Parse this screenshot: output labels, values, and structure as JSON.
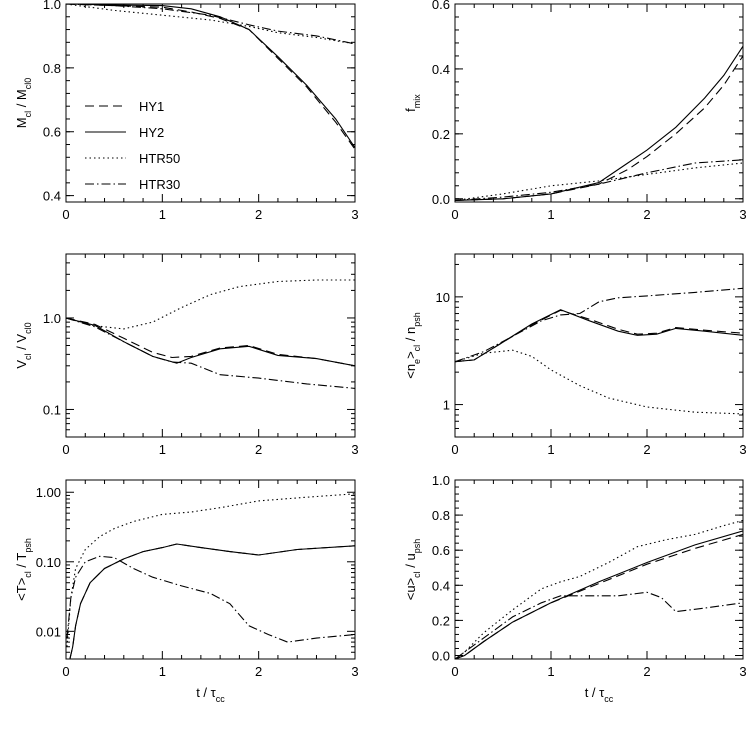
{
  "chart_data": [
    {
      "type": "line",
      "panel": "top-left",
      "ylabel": {
        "main": "M",
        "sub": "cl",
        "tail": " / M",
        "tail_sub": "cl0"
      },
      "xlabel": null,
      "xlim": [
        0,
        3
      ],
      "ylim": [
        0.38,
        1.0
      ],
      "yscale": "linear",
      "xticks": [
        "0",
        "1",
        "2",
        "3"
      ],
      "yticks": [
        {
          "v": 0.4,
          "label": "0.4"
        },
        {
          "v": 0.6,
          "label": "0.6"
        },
        {
          "v": 0.8,
          "label": "0.8"
        },
        {
          "v": 1.0,
          "label": "1.0"
        }
      ],
      "legend": {
        "placement": "left-middle",
        "entries": [
          {
            "label": "HY1",
            "style": "dashed"
          },
          {
            "label": "HY2",
            "style": "solid"
          },
          {
            "label": "HTR50",
            "style": "dotted"
          },
          {
            "label": "HTR30",
            "style": "dashdot"
          }
        ]
      },
      "series": [
        {
          "name": "HY1",
          "style": "dashed",
          "x": [
            0,
            0.5,
            1.0,
            1.3,
            1.6,
            1.9,
            2.2,
            2.5,
            2.8,
            3.0
          ],
          "y": [
            1.0,
            0.995,
            0.99,
            0.975,
            0.955,
            0.92,
            0.83,
            0.74,
            0.63,
            0.545
          ]
        },
        {
          "name": "HY2",
          "style": "solid",
          "x": [
            0,
            0.5,
            1.0,
            1.3,
            1.6,
            1.9,
            2.2,
            2.5,
            2.8,
            3.0
          ],
          "y": [
            1.0,
            0.997,
            0.995,
            0.985,
            0.96,
            0.92,
            0.835,
            0.745,
            0.64,
            0.55
          ]
        },
        {
          "name": "HTR50",
          "style": "dotted",
          "x": [
            0,
            0.5,
            1.0,
            1.5,
            1.9,
            2.2,
            2.6,
            3.0
          ],
          "y": [
            1.0,
            0.98,
            0.965,
            0.95,
            0.93,
            0.91,
            0.895,
            0.875
          ]
        },
        {
          "name": "HTR30",
          "style": "dashdot",
          "x": [
            0,
            0.5,
            1.0,
            1.5,
            1.9,
            2.2,
            2.6,
            3.0
          ],
          "y": [
            1.0,
            0.995,
            0.985,
            0.965,
            0.935,
            0.915,
            0.9,
            0.875
          ]
        }
      ]
    },
    {
      "type": "line",
      "panel": "top-right",
      "ylabel": {
        "main": "f",
        "sub": "mix",
        "tail": "",
        "tail_sub": ""
      },
      "xlabel": null,
      "xlim": [
        0,
        3
      ],
      "ylim": [
        -0.01,
        0.6
      ],
      "yscale": "linear",
      "xticks": [
        "0",
        "1",
        "2",
        "3"
      ],
      "yticks": [
        {
          "v": 0.0,
          "label": "0.0"
        },
        {
          "v": 0.2,
          "label": "0.2"
        },
        {
          "v": 0.4,
          "label": "0.4"
        },
        {
          "v": 0.6,
          "label": "0.6"
        }
      ],
      "series": [
        {
          "name": "HY1",
          "style": "dashed",
          "x": [
            0,
            0.5,
            1.0,
            1.5,
            1.8,
            2.0,
            2.3,
            2.6,
            2.8,
            3.0
          ],
          "y": [
            -0.005,
            0.0,
            0.015,
            0.045,
            0.09,
            0.13,
            0.2,
            0.28,
            0.35,
            0.44
          ]
        },
        {
          "name": "HY2",
          "style": "solid",
          "x": [
            0,
            0.5,
            1.0,
            1.5,
            1.8,
            2.0,
            2.3,
            2.6,
            2.8,
            3.0
          ],
          "y": [
            -0.005,
            0.0,
            0.015,
            0.05,
            0.11,
            0.15,
            0.22,
            0.31,
            0.38,
            0.47
          ]
        },
        {
          "name": "HTR50",
          "style": "dotted",
          "x": [
            0,
            0.5,
            1.0,
            1.5,
            2.0,
            2.5,
            3.0
          ],
          "y": [
            -0.005,
            0.015,
            0.04,
            0.055,
            0.075,
            0.095,
            0.11
          ]
        },
        {
          "name": "HTR30",
          "style": "dashdot",
          "x": [
            0,
            0.5,
            1.0,
            1.5,
            2.0,
            2.5,
            3.0
          ],
          "y": [
            -0.005,
            0.005,
            0.02,
            0.045,
            0.08,
            0.11,
            0.12
          ]
        }
      ]
    },
    {
      "type": "line",
      "panel": "middle-left",
      "ylabel": {
        "main": "V",
        "sub": "cl",
        "tail": " / V",
        "tail_sub": "cl0"
      },
      "xlabel": null,
      "xlim": [
        0,
        3
      ],
      "ylim": [
        0.05,
        5
      ],
      "yscale": "log",
      "xticks": [
        "0",
        "1",
        "2",
        "3"
      ],
      "yticks": [
        {
          "v": 0.1,
          "label": "0.1"
        },
        {
          "v": 1.0,
          "label": "1.0"
        }
      ],
      "series": [
        {
          "name": "HY1",
          "style": "dashed",
          "x": [
            0,
            0.3,
            0.6,
            0.9,
            1.1,
            1.3,
            1.6,
            1.9,
            2.2,
            2.6,
            3.0
          ],
          "y": [
            1.0,
            0.85,
            0.6,
            0.42,
            0.37,
            0.38,
            0.47,
            0.5,
            0.4,
            0.36,
            0.3
          ]
        },
        {
          "name": "HY2",
          "style": "solid",
          "x": [
            0,
            0.3,
            0.6,
            0.9,
            1.15,
            1.3,
            1.6,
            1.9,
            2.2,
            2.6,
            3.0
          ],
          "y": [
            1.0,
            0.83,
            0.55,
            0.38,
            0.32,
            0.37,
            0.46,
            0.49,
            0.39,
            0.36,
            0.3
          ]
        },
        {
          "name": "HTR50",
          "style": "dotted",
          "x": [
            0,
            0.3,
            0.6,
            0.9,
            1.2,
            1.5,
            1.8,
            2.2,
            2.6,
            3.0
          ],
          "y": [
            1.0,
            0.82,
            0.76,
            0.9,
            1.3,
            1.8,
            2.2,
            2.5,
            2.6,
            2.6
          ]
        },
        {
          "name": "HTR30",
          "style": "dashdot",
          "x": [
            0,
            0.3,
            0.6,
            0.9,
            1.1,
            1.3,
            1.6,
            2.0,
            2.5,
            3.0
          ],
          "y": [
            1.0,
            0.8,
            0.55,
            0.38,
            0.33,
            0.32,
            0.24,
            0.22,
            0.19,
            0.17
          ]
        }
      ]
    },
    {
      "type": "line",
      "panel": "middle-right",
      "ylabel": {
        "main": "<n",
        "sub": "e",
        "tail": ">",
        "tail_sub": "cl",
        "tail2": " / n",
        "tail2_sub": "psh"
      },
      "xlabel": null,
      "xlim": [
        0,
        3
      ],
      "ylim": [
        0.5,
        25
      ],
      "yscale": "log",
      "xticks": [
        "0",
        "1",
        "2",
        "3"
      ],
      "yticks": [
        {
          "v": 1,
          "label": "1"
        },
        {
          "v": 10,
          "label": "10"
        }
      ],
      "series": [
        {
          "name": "HY1",
          "style": "dashed",
          "x": [
            0,
            0.2,
            0.5,
            0.8,
            1.1,
            1.4,
            1.7,
            1.9,
            2.1,
            2.3,
            2.6,
            3.0
          ],
          "y": [
            2.5,
            2.6,
            3.8,
            5.5,
            7.5,
            6.2,
            5.0,
            4.5,
            4.6,
            5.2,
            4.9,
            4.6
          ]
        },
        {
          "name": "HY2",
          "style": "solid",
          "x": [
            0,
            0.2,
            0.5,
            0.8,
            1.1,
            1.4,
            1.7,
            1.9,
            2.1,
            2.3,
            2.6,
            3.0
          ],
          "y": [
            2.5,
            2.6,
            3.8,
            5.6,
            7.6,
            6.0,
            4.8,
            4.4,
            4.5,
            5.1,
            4.8,
            4.4
          ]
        },
        {
          "name": "HTR50",
          "style": "dotted",
          "x": [
            0,
            0.3,
            0.6,
            0.8,
            1.0,
            1.3,
            1.6,
            2.0,
            2.5,
            3.0
          ],
          "y": [
            2.5,
            3.0,
            3.2,
            2.8,
            2.1,
            1.5,
            1.15,
            0.95,
            0.85,
            0.82
          ]
        },
        {
          "name": "HTR30",
          "style": "dashdot",
          "x": [
            0,
            0.3,
            0.6,
            0.9,
            1.1,
            1.3,
            1.5,
            1.7,
            2.0,
            2.5,
            3.0
          ],
          "y": [
            2.5,
            3.1,
            4.3,
            6.0,
            6.8,
            7.0,
            9.0,
            9.8,
            10.2,
            11.0,
            12.0
          ]
        }
      ]
    },
    {
      "type": "line",
      "panel": "bottom-left",
      "ylabel": {
        "main": "<T>",
        "sub": "cl",
        "tail": " / T",
        "tail_sub": "psh"
      },
      "xlabel": {
        "main": "t / τ",
        "sub": "cc"
      },
      "xlim": [
        0,
        3
      ],
      "ylim": [
        0.004,
        1.5
      ],
      "yscale": "log",
      "xticks": [
        "0",
        "1",
        "2",
        "3"
      ],
      "yticks": [
        {
          "v": 0.01,
          "label": "0.01"
        },
        {
          "v": 0.1,
          "label": "0.10"
        },
        {
          "v": 1.0,
          "label": "1.00"
        }
      ],
      "series": [
        {
          "name": "HY1",
          "style": "dashed",
          "x": [
            0.04,
            0.07,
            0.1,
            0.15,
            0.25,
            0.4,
            0.6,
            0.8,
            1.0,
            1.15,
            1.4,
            1.7,
            2.0,
            2.4,
            3.0
          ],
          "y": [
            0.004,
            0.006,
            0.012,
            0.025,
            0.05,
            0.08,
            0.11,
            0.14,
            0.16,
            0.18,
            0.16,
            0.14,
            0.125,
            0.15,
            0.17
          ]
        },
        {
          "name": "HY2",
          "style": "solid",
          "x": [
            0.04,
            0.07,
            0.1,
            0.15,
            0.25,
            0.4,
            0.6,
            0.8,
            1.0,
            1.15,
            1.4,
            1.7,
            2.0,
            2.4,
            3.0
          ],
          "y": [
            0.004,
            0.006,
            0.012,
            0.025,
            0.05,
            0.08,
            0.11,
            0.14,
            0.16,
            0.18,
            0.16,
            0.14,
            0.125,
            0.15,
            0.17
          ]
        },
        {
          "name": "HTR50",
          "style": "dotted",
          "x": [
            0.01,
            0.05,
            0.1,
            0.2,
            0.35,
            0.5,
            0.7,
            1.0,
            1.3,
            1.6,
            2.0,
            2.5,
            3.0
          ],
          "y": [
            0.006,
            0.03,
            0.08,
            0.15,
            0.23,
            0.3,
            0.38,
            0.48,
            0.52,
            0.6,
            0.75,
            0.85,
            0.95
          ]
        },
        {
          "name": "HTR30",
          "style": "dashdot",
          "x": [
            0.01,
            0.05,
            0.1,
            0.2,
            0.35,
            0.5,
            0.7,
            0.9,
            1.2,
            1.5,
            1.7,
            1.9,
            2.1,
            2.3,
            2.6,
            3.0
          ],
          "y": [
            0.008,
            0.03,
            0.06,
            0.1,
            0.12,
            0.115,
            0.08,
            0.06,
            0.045,
            0.035,
            0.025,
            0.012,
            0.009,
            0.007,
            0.008,
            0.009
          ]
        }
      ]
    },
    {
      "type": "line",
      "panel": "bottom-right",
      "ylabel": {
        "main": "<u>",
        "sub": "cl",
        "tail": " / u",
        "tail_sub": "psh"
      },
      "xlabel": {
        "main": "t / τ",
        "sub": "cc"
      },
      "xlim": [
        0,
        3
      ],
      "ylim": [
        -0.02,
        1.0
      ],
      "yscale": "linear",
      "xticks": [
        "0",
        "1",
        "2",
        "3"
      ],
      "yticks": [
        {
          "v": 0.0,
          "label": "0.0"
        },
        {
          "v": 0.2,
          "label": "0.2"
        },
        {
          "v": 0.4,
          "label": "0.4"
        },
        {
          "v": 0.6,
          "label": "0.6"
        },
        {
          "v": 0.8,
          "label": "0.8"
        },
        {
          "v": 1.0,
          "label": "1.0"
        }
      ],
      "series": [
        {
          "name": "HY1",
          "style": "dashed",
          "x": [
            0,
            0.1,
            0.3,
            0.6,
            1.0,
            1.5,
            2.0,
            2.5,
            3.0
          ],
          "y": [
            -0.02,
            0.0,
            0.08,
            0.19,
            0.3,
            0.41,
            0.52,
            0.61,
            0.69
          ]
        },
        {
          "name": "HY2",
          "style": "solid",
          "x": [
            0,
            0.1,
            0.3,
            0.6,
            1.0,
            1.5,
            2.0,
            2.5,
            3.0
          ],
          "y": [
            -0.02,
            0.0,
            0.08,
            0.19,
            0.3,
            0.42,
            0.53,
            0.63,
            0.71
          ]
        },
        {
          "name": "HTR50",
          "style": "dotted",
          "x": [
            0,
            0.1,
            0.3,
            0.6,
            0.9,
            1.1,
            1.3,
            1.6,
            1.9,
            2.2,
            2.5,
            2.8,
            3.0
          ],
          "y": [
            -0.02,
            0.02,
            0.13,
            0.26,
            0.38,
            0.42,
            0.45,
            0.53,
            0.62,
            0.66,
            0.69,
            0.74,
            0.77
          ]
        },
        {
          "name": "HTR30",
          "style": "dashdot",
          "x": [
            0,
            0.1,
            0.3,
            0.6,
            0.9,
            1.1,
            1.4,
            1.7,
            2.0,
            2.15,
            2.3,
            2.6,
            3.0
          ],
          "y": [
            -0.02,
            0.02,
            0.1,
            0.22,
            0.3,
            0.34,
            0.34,
            0.34,
            0.36,
            0.33,
            0.25,
            0.27,
            0.3
          ]
        }
      ]
    }
  ]
}
